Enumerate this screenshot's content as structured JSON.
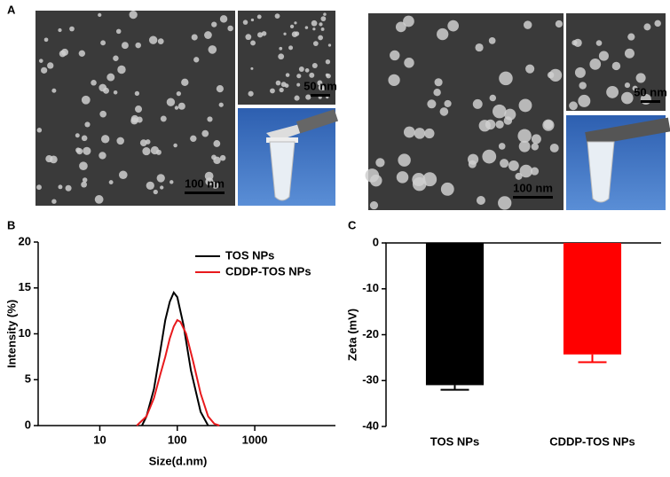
{
  "panel_labels": [
    "A",
    "B",
    "C"
  ],
  "micrographs": [
    {
      "scale_bar": "100 nm"
    },
    {
      "scale_bar": "50 nm"
    },
    {
      "scale_bar": "100 nm"
    },
    {
      "scale_bar": "50 nm"
    }
  ],
  "chart_data": [
    {
      "type": "line",
      "xlabel": "Size(d.nm)",
      "ylabel": "Intensity (%)",
      "log_x": true,
      "xlim": [
        1.6,
        11000
      ],
      "xticks": [
        10,
        100,
        1000
      ],
      "ylim": [
        0,
        20
      ],
      "yticks": [
        0,
        5,
        10,
        15,
        20
      ],
      "legend": "upper right",
      "series": [
        {
          "name": "TOS NPs",
          "color": "#000000",
          "x": [
            35,
            40,
            50,
            60,
            70,
            80,
            90,
            100,
            120,
            150,
            200,
            250
          ],
          "values": [
            0,
            1,
            4,
            8,
            11.5,
            13.5,
            14.5,
            14,
            11,
            6,
            1.5,
            0
          ]
        },
        {
          "name": "CDDP-TOS  NPs",
          "color": "#e8191c",
          "x": [
            30,
            40,
            50,
            60,
            70,
            80,
            90,
            100,
            110,
            130,
            160,
            200,
            250,
            300,
            350
          ],
          "values": [
            0,
            1,
            3,
            5.5,
            7.5,
            9.5,
            10.8,
            11.5,
            11.3,
            10,
            7,
            3.5,
            1,
            0.2,
            0
          ]
        }
      ]
    },
    {
      "type": "bar",
      "ylabel": "Zeta (mV)",
      "categories": [
        "TOS NPs",
        "CDDP-TOS NPs"
      ],
      "values": [
        -31,
        -24.3
      ],
      "errors": [
        1,
        1.7
      ],
      "colors": [
        "#000000",
        "#ff0000"
      ],
      "ylim": [
        -40,
        0
      ],
      "yticks": [
        0,
        -10,
        -20,
        -30,
        -40
      ]
    }
  ]
}
